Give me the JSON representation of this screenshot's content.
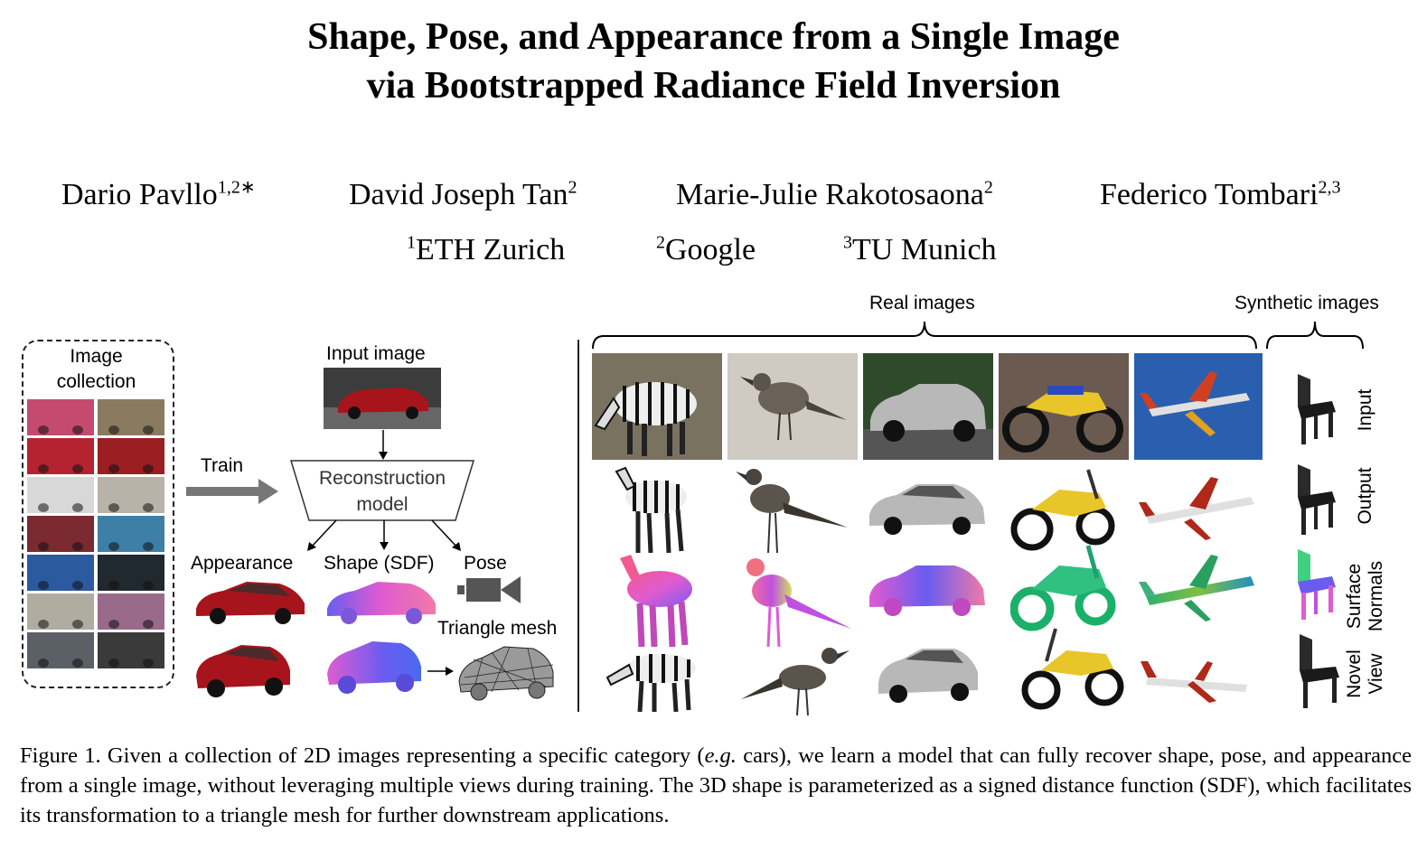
{
  "title": {
    "line1": "Shape, Pose, and Appearance from a Single Image",
    "line2": "via Bootstrapped Radiance Field Inversion"
  },
  "authors": [
    {
      "name": "Dario Pavllo",
      "sup": "1,2∗"
    },
    {
      "name": "David Joseph Tan",
      "sup": "2"
    },
    {
      "name": "Marie-Julie Rakotosaona",
      "sup": "2"
    },
    {
      "name": "Federico Tombari",
      "sup": "2,3"
    }
  ],
  "affiliations": [
    {
      "sup": "1",
      "name": "ETH Zurich"
    },
    {
      "sup": "2",
      "name": "Google"
    },
    {
      "sup": "3",
      "name": "TU Munich"
    }
  ],
  "figure": {
    "image_collection_label_1": "Image",
    "image_collection_label_2": "collection",
    "train_label": "Train",
    "input_image_label": "Input image",
    "model_label_1": "Reconstruction",
    "model_label_2": "model",
    "appearance_label": "Appearance",
    "shape_label": "Shape (SDF)",
    "pose_label": "Pose",
    "mesh_label": "Triangle mesh",
    "real_images_label": "Real images",
    "synthetic_images_label": "Synthetic images",
    "row_labels": {
      "input": "Input",
      "output": "Output",
      "normals_1": "Surface",
      "normals_2": "Normals",
      "novel_1": "Novel",
      "novel_2": "View"
    },
    "columns": [
      "zebra",
      "bird",
      "car",
      "motorcycle",
      "airplane",
      "chair"
    ],
    "colors": {
      "car_red": "#a8141c",
      "normal_pink": "#e05bd0",
      "normal_blue": "#6a5cf0",
      "zebra": "#222222",
      "motorcycle_yellow": "#e8c62a",
      "sky_blue": "#2a5fb0"
    }
  },
  "caption": {
    "prefix": "Figure 1. Given a collection of 2D images representing a specific category (",
    "italic": "e.g.",
    "rest": " cars), we learn a model that can fully recover shape, pose, and appearance from a single image, without leveraging multiple views during training. The 3D shape is parameterized as a signed distance function (SDF), which facilitates its transformation to a triangle mesh for further downstream applications."
  }
}
